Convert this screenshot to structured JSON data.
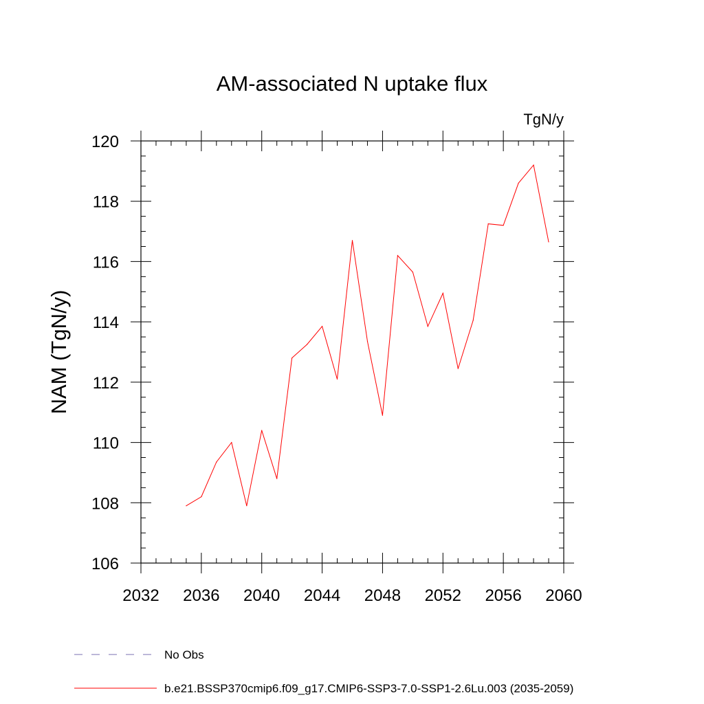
{
  "chart_data": {
    "type": "line",
    "title": "AM-associated N uptake flux",
    "units_label": "TgN/y",
    "xlabel": "",
    "ylabel": "NAM  (TgN/y)",
    "xlim": [
      2032,
      2060
    ],
    "ylim": [
      106,
      120
    ],
    "x_ticks": [
      2032,
      2036,
      2040,
      2044,
      2048,
      2052,
      2056,
      2060
    ],
    "y_ticks": [
      106,
      108,
      110,
      112,
      114,
      116,
      118,
      120
    ],
    "x_minor_step": 1,
    "y_minor_step": 0.5,
    "series": [
      {
        "name": "b.e21.BSSP370cmip6.f09_g17.CMIP6-SSP3-7.0-SSP1-2.6Lu.003 (2035-2059)",
        "color": "#ff0000",
        "style": "solid",
        "x": [
          2035,
          2036,
          2037,
          2038,
          2039,
          2040,
          2041,
          2042,
          2043,
          2044,
          2045,
          2046,
          2047,
          2048,
          2049,
          2050,
          2051,
          2052,
          2053,
          2054,
          2055,
          2056,
          2057,
          2058,
          2059
        ],
        "values": [
          107.9,
          108.2,
          109.35,
          110.0,
          107.9,
          110.4,
          108.8,
          112.8,
          113.25,
          113.85,
          112.1,
          116.7,
          113.35,
          110.9,
          116.2,
          115.65,
          113.85,
          114.95,
          112.45,
          114.05,
          117.25,
          117.2,
          118.6,
          119.2,
          116.65
        ]
      }
    ],
    "legend": [
      {
        "label": "No Obs",
        "color": "#7a6fb0",
        "style": "dashed"
      },
      {
        "label": "b.e21.BSSP370cmip6.f09_g17.CMIP6-SSP3-7.0-SSP1-2.6Lu.003 (2035-2059)",
        "color": "#ff0000",
        "style": "solid"
      }
    ],
    "legend_placement": "bottom-left"
  }
}
